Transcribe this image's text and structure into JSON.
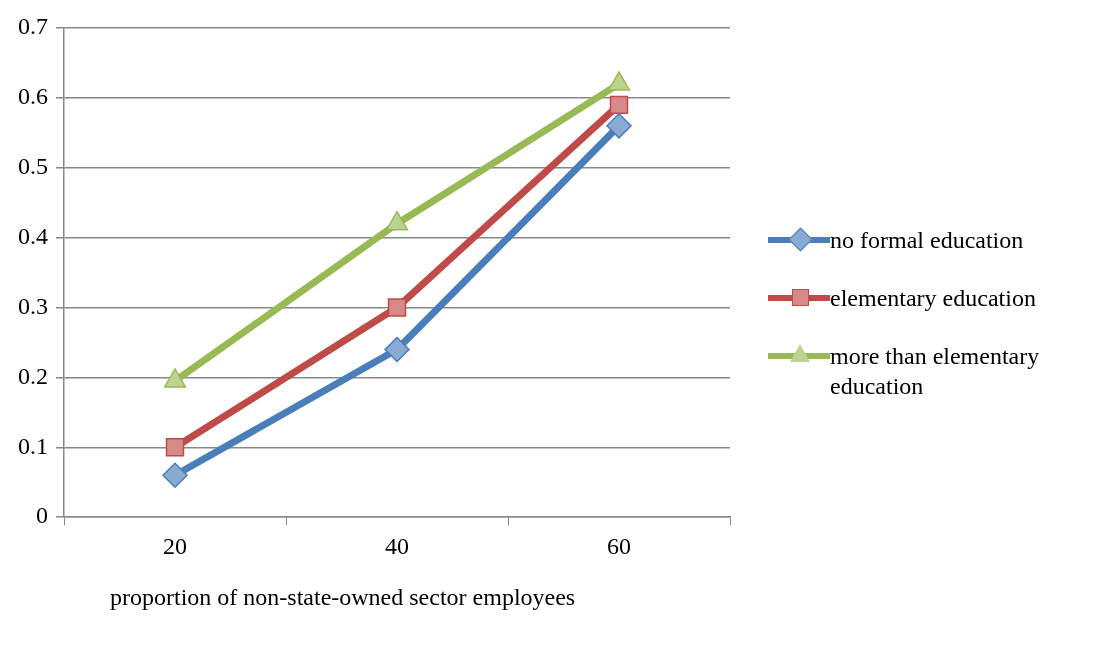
{
  "chart_data": {
    "type": "line",
    "xlabel": "proportion of non-state-owned sector employees",
    "categories": [
      "20",
      "40",
      "60"
    ],
    "series": [
      {
        "name": "no formal education",
        "color": "#4a7ebb",
        "marker": "diamond",
        "values": [
          0.06,
          0.24,
          0.56
        ]
      },
      {
        "name": "elementary education",
        "color": "#be4b48",
        "marker": "square",
        "values": [
          0.1,
          0.3,
          0.59
        ]
      },
      {
        "name": "more than elementary education",
        "color": "#98b954",
        "marker": "triangle",
        "values": [
          0.195,
          0.42,
          0.62
        ]
      }
    ],
    "ylim": [
      0,
      0.7
    ],
    "yticks": [
      0,
      0.1,
      0.2,
      0.3,
      0.4,
      0.5,
      0.6,
      0.7
    ],
    "grid": "y",
    "legend": "right",
    "line_style": "solid"
  }
}
